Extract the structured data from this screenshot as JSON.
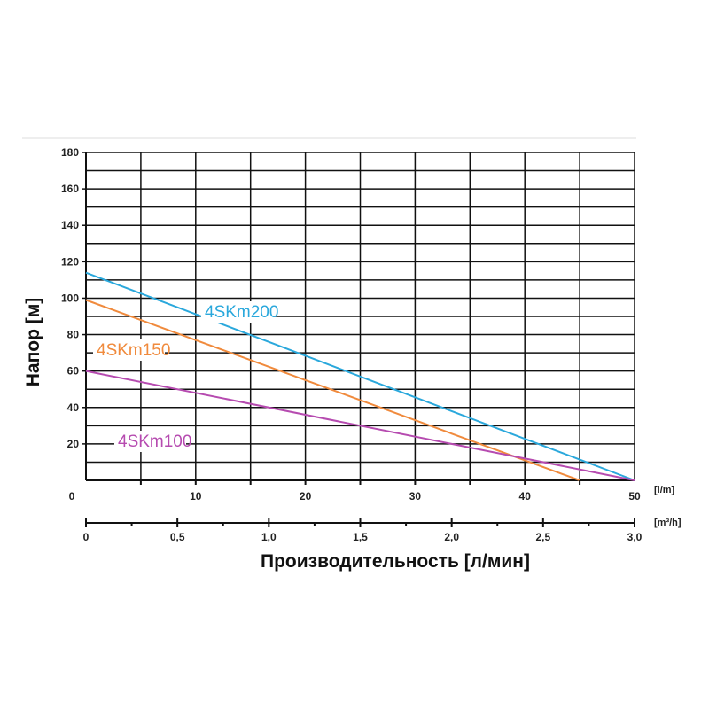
{
  "chart_data": {
    "type": "line",
    "ylabel": "Напор [м]",
    "xlabel": "Производительность [л/мин]",
    "x_unit_primary": "[l/m]",
    "x_unit_secondary": "[m³/h]",
    "xlim": [
      0,
      50
    ],
    "ylim": [
      0,
      180
    ],
    "grid": true,
    "y_ticks": [
      "20",
      "40",
      "60",
      "80",
      "100",
      "120",
      "140",
      "160",
      "180"
    ],
    "x_ticks_primary": [
      "0",
      "10",
      "20",
      "30",
      "40",
      "50"
    ],
    "x_ticks_secondary": [
      "0",
      "0,5",
      "1,0",
      "1,5",
      "2,0",
      "2,5",
      "3,0"
    ],
    "series": [
      {
        "name": "4SKm200",
        "color": "#2aa8dc",
        "x": [
          0,
          50
        ],
        "y": [
          114,
          0
        ]
      },
      {
        "name": "4SKm150",
        "color": "#f08a3c",
        "x": [
          0,
          45
        ],
        "y": [
          99,
          0
        ]
      },
      {
        "name": "4SKm100",
        "color": "#b64bb0",
        "x": [
          0,
          50
        ],
        "y": [
          60,
          0
        ]
      }
    ]
  }
}
